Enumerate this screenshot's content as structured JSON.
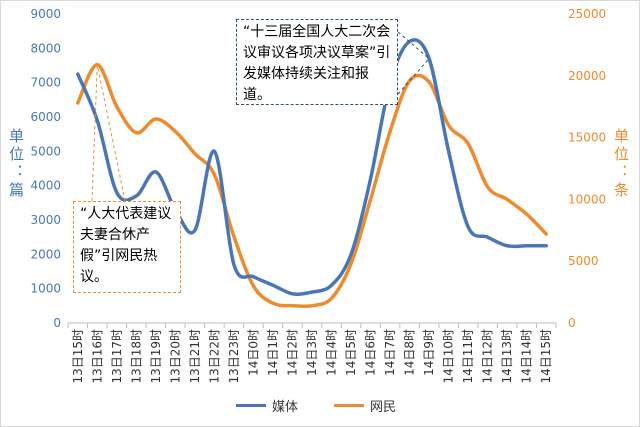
{
  "chart_data": {
    "type": "line",
    "categories": [
      "13日15时",
      "13日16时",
      "13日17时",
      "13日18时",
      "13日19时",
      "13日20时",
      "13日21时",
      "13日22时",
      "13日23时",
      "14日0时",
      "14日1时",
      "14日2时",
      "14日3时",
      "14日4时",
      "14日5时",
      "14日6时",
      "14日7时",
      "14日8时",
      "14日9时",
      "14日10时",
      "14日11时",
      "14日12时",
      "14日13时",
      "14日14时",
      "14日15时"
    ],
    "series": [
      {
        "name": "媒体",
        "axis": "left",
        "color": "#4a77b4",
        "values": [
          7250,
          5900,
          3800,
          3700,
          4400,
          3300,
          2700,
          5000,
          1700,
          1350,
          1100,
          850,
          900,
          1100,
          2000,
          4200,
          7000,
          8200,
          7700,
          5000,
          2800,
          2500,
          2250,
          2250,
          2250
        ]
      },
      {
        "name": "网民",
        "axis": "right",
        "color": "#ed8b2f",
        "values": [
          17800,
          20900,
          17500,
          15400,
          16500,
          15500,
          13700,
          12000,
          7000,
          3000,
          1600,
          1400,
          1400,
          2000,
          4800,
          10000,
          15500,
          19600,
          19500,
          16000,
          14500,
          11000,
          10000,
          8800,
          7200
        ]
      }
    ],
    "y_left": {
      "min": 0,
      "max": 9000,
      "step": 1000,
      "label": "单位：篇"
    },
    "y_right": {
      "min": 0,
      "max": 25000,
      "step": 5000,
      "label": "单位：条"
    },
    "annotations": [
      {
        "text": "“十三届全国人大二次会议审议各项决议草案”引发媒体持续关注和报道。",
        "series": "媒体",
        "point_index": 18
      },
      {
        "text": "“人大代表建议夫妻合休产假”引网民热议。",
        "series": "网民",
        "point_index": 1
      }
    ],
    "legend_position": "bottom",
    "grid": false
  },
  "labels": {
    "y_left": "单位：篇",
    "y_right": "单位：条",
    "callout_media": "“十三届全国人大二次会议审议各项决议草案”引发媒体持续关注和报道。",
    "callout_net": "“人大代表建议夫妻合休产假”引网民热议。",
    "legend_media": "媒体",
    "legend_net": "网民"
  },
  "colors": {
    "media": "#4a77b4",
    "net": "#ed8b2f"
  }
}
